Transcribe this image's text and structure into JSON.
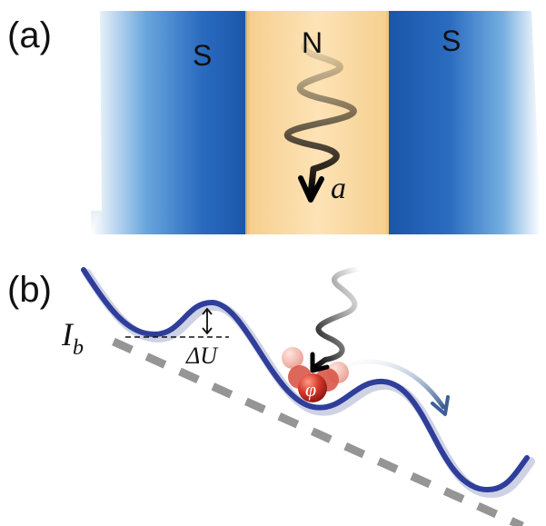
{
  "panel_a": {
    "label": "(a)",
    "left_region": "S",
    "middle_region": "N",
    "right_region": "S",
    "photon_symbol": "a"
  },
  "panel_b": {
    "label": "(b)",
    "bias_symbol": "I",
    "bias_subscript": "b",
    "barrier_label": "ΔU",
    "phase_symbol": "φ"
  },
  "colors": {
    "superconductor": "#1f5fb5",
    "normal_metal": "#fbd9a0",
    "potential_curve": "#2e3e9a",
    "dashed_tilt": "#8a8a8a",
    "particle": "#c0211c"
  }
}
